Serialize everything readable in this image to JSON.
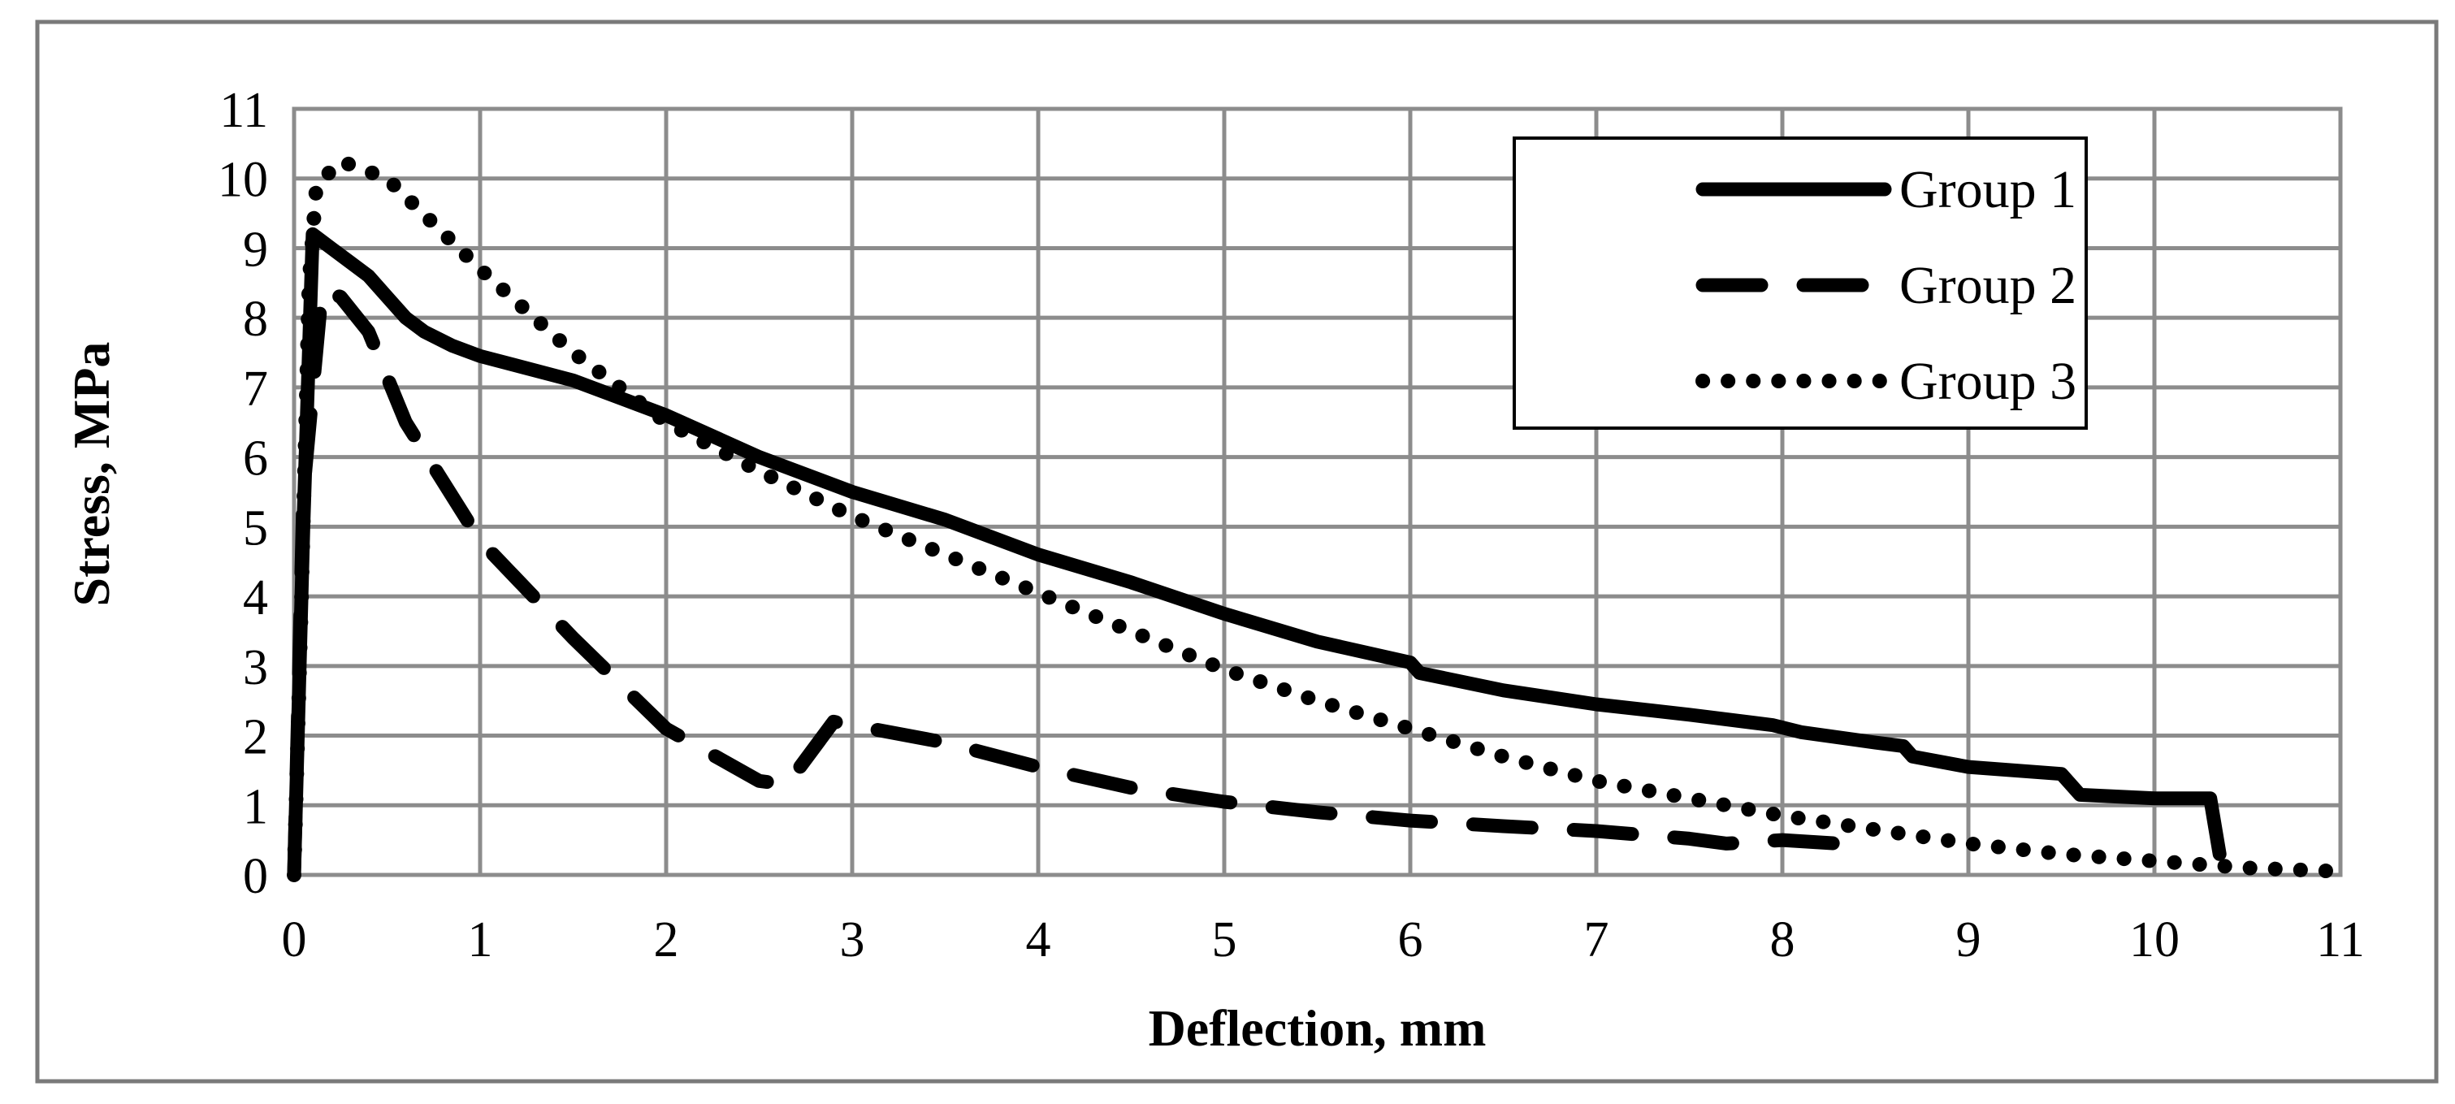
{
  "chart_data": {
    "type": "line",
    "title": "",
    "xlabel": "Deflection, mm",
    "ylabel": "Stress, MPa",
    "xlim": [
      0,
      11
    ],
    "ylim": [
      0,
      11
    ],
    "xticks": [
      "0",
      "1",
      "2",
      "3",
      "4",
      "5",
      "6",
      "7",
      "8",
      "9",
      "10",
      "11"
    ],
    "yticks": [
      "0",
      "1",
      "2",
      "3",
      "4",
      "5",
      "6",
      "7",
      "8",
      "9",
      "10",
      "11"
    ],
    "grid": true,
    "legend_position": "top-right",
    "series": [
      {
        "name": "Group 1",
        "style": "solid",
        "color": "#000000",
        "points": [
          [
            0,
            0
          ],
          [
            0.05,
            5.0
          ],
          [
            0.1,
            9.2
          ],
          [
            0.2,
            9.0
          ],
          [
            0.3,
            8.8
          ],
          [
            0.4,
            8.6
          ],
          [
            0.5,
            8.3
          ],
          [
            0.6,
            8.0
          ],
          [
            0.7,
            7.8
          ],
          [
            0.85,
            7.6
          ],
          [
            1.0,
            7.45
          ],
          [
            1.5,
            7.1
          ],
          [
            2.0,
            6.6
          ],
          [
            2.5,
            6.0
          ],
          [
            3.0,
            5.5
          ],
          [
            3.5,
            5.1
          ],
          [
            4.0,
            4.6
          ],
          [
            4.5,
            4.2
          ],
          [
            5.0,
            3.75
          ],
          [
            5.5,
            3.35
          ],
          [
            6.0,
            3.05
          ],
          [
            6.05,
            2.9
          ],
          [
            6.5,
            2.65
          ],
          [
            7.0,
            2.45
          ],
          [
            7.5,
            2.3
          ],
          [
            7.95,
            2.15
          ],
          [
            8.1,
            2.05
          ],
          [
            8.5,
            1.9
          ],
          [
            8.65,
            1.85
          ],
          [
            8.7,
            1.7
          ],
          [
            9.0,
            1.55
          ],
          [
            9.5,
            1.45
          ],
          [
            9.6,
            1.15
          ],
          [
            10.0,
            1.1
          ],
          [
            10.3,
            1.1
          ],
          [
            10.35,
            0.3
          ]
        ]
      },
      {
        "name": "Group 2",
        "style": "dashed",
        "color": "#000000",
        "points": [
          [
            0,
            0
          ],
          [
            0.05,
            5.5
          ],
          [
            0.15,
            8.4
          ],
          [
            0.25,
            8.3
          ],
          [
            0.4,
            7.8
          ],
          [
            0.6,
            6.5
          ],
          [
            1.0,
            4.8
          ],
          [
            1.5,
            3.4
          ],
          [
            2.0,
            2.1
          ],
          [
            2.5,
            1.35
          ],
          [
            2.65,
            1.3
          ],
          [
            2.9,
            2.2
          ],
          [
            3.5,
            1.9
          ],
          [
            4.0,
            1.55
          ],
          [
            4.5,
            1.25
          ],
          [
            5.0,
            1.05
          ],
          [
            5.5,
            0.9
          ],
          [
            6.0,
            0.78
          ],
          [
            6.5,
            0.7
          ],
          [
            7.0,
            0.63
          ],
          [
            7.5,
            0.52
          ],
          [
            7.7,
            0.45
          ],
          [
            8.0,
            0.5
          ],
          [
            8.3,
            0.45
          ]
        ]
      },
      {
        "name": "Group 3",
        "style": "dotted",
        "color": "#000000",
        "points": [
          [
            0,
            0
          ],
          [
            0.04,
            4.0
          ],
          [
            0.08,
            8.5
          ],
          [
            0.12,
            9.9
          ],
          [
            0.25,
            10.25
          ],
          [
            0.5,
            10.0
          ],
          [
            1.0,
            8.7
          ],
          [
            1.5,
            7.5
          ],
          [
            2.0,
            6.5
          ],
          [
            2.5,
            5.8
          ],
          [
            3.0,
            5.15
          ],
          [
            3.5,
            4.6
          ],
          [
            4.0,
            4.05
          ],
          [
            4.5,
            3.5
          ],
          [
            5.0,
            2.95
          ],
          [
            5.5,
            2.5
          ],
          [
            6.0,
            2.1
          ],
          [
            6.5,
            1.7
          ],
          [
            7.0,
            1.35
          ],
          [
            7.5,
            1.1
          ],
          [
            8.0,
            0.85
          ],
          [
            8.5,
            0.65
          ],
          [
            9.0,
            0.45
          ],
          [
            9.5,
            0.3
          ],
          [
            10.0,
            0.2
          ],
          [
            10.5,
            0.1
          ],
          [
            11.0,
            0.05
          ]
        ]
      }
    ]
  }
}
